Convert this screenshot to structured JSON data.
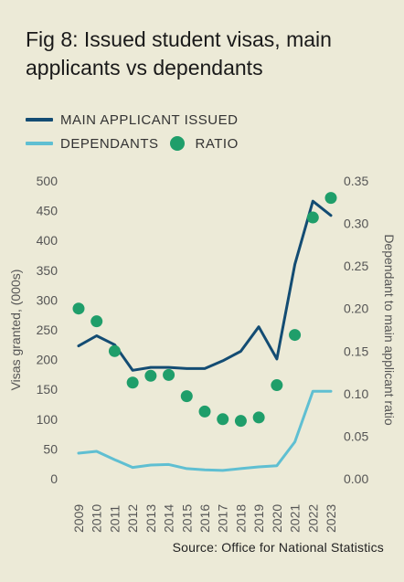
{
  "title": "Fig 8: Issued student visas, main applicants vs dependants",
  "source": "Source: Office for National Statistics",
  "colors": {
    "main": "#134c73",
    "dependants": "#5fbfd2",
    "ratio": "#1f9e6a",
    "axis_text": "#555555"
  },
  "chart_data": {
    "type": "line",
    "x": [
      "2009",
      "2010",
      "2011",
      "2012",
      "2013",
      "2014",
      "2015",
      "2016",
      "2017",
      "2018",
      "2019",
      "2020",
      "2021",
      "2022",
      "2023"
    ],
    "series": [
      {
        "name": "MAIN APPLICANT ISSUED",
        "axis": "left",
        "kind": "line",
        "values": [
          223,
          240,
          225,
          182,
          187,
          187,
          185,
          185,
          198,
          214,
          255,
          201,
          360,
          466,
          442
        ]
      },
      {
        "name": "DEPENDANTS",
        "axis": "left",
        "kind": "line",
        "values": [
          43,
          46,
          32,
          19,
          23,
          24,
          17,
          15,
          14,
          17,
          20,
          22,
          62,
          147,
          147
        ]
      },
      {
        "name": "RATIO",
        "axis": "right",
        "kind": "scatter",
        "values": [
          0.2,
          0.185,
          0.15,
          0.113,
          0.121,
          0.122,
          0.097,
          0.079,
          0.07,
          0.068,
          0.072,
          0.11,
          0.169,
          0.307,
          0.33
        ]
      }
    ],
    "ylabel": "Visas granted, (000s)",
    "y2label": "Dependant to main applicant ratio",
    "ylim": [
      0,
      500
    ],
    "yticks": [
      "0",
      "50",
      "100",
      "150",
      "200",
      "250",
      "300",
      "350",
      "400",
      "450",
      "500"
    ],
    "y2lim": [
      0,
      0.35
    ],
    "y2ticks": [
      "0.00",
      "0.05",
      "0.10",
      "0.15",
      "0.20",
      "0.25",
      "0.30",
      "0.35"
    ],
    "grid": false,
    "legend": "top-left"
  }
}
